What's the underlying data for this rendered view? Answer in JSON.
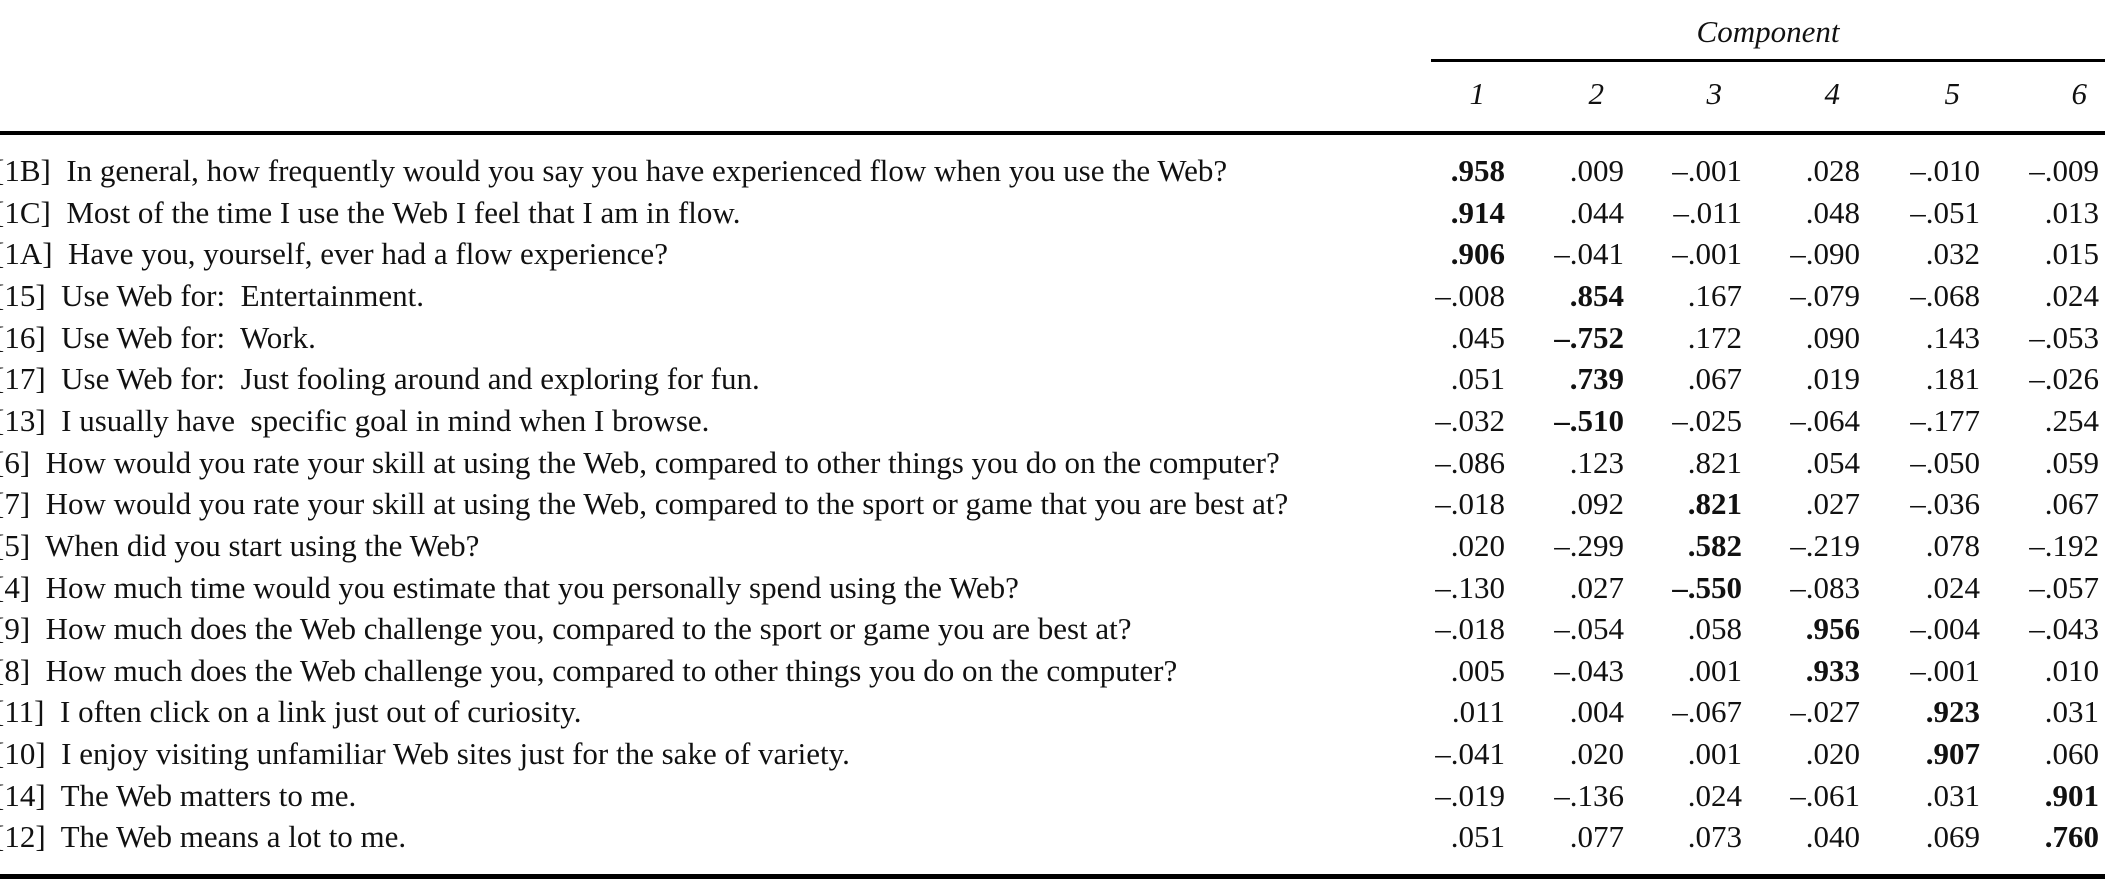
{
  "table": {
    "component_title": "Component",
    "columns": [
      "1",
      "2",
      "3",
      "4",
      "5",
      "6"
    ],
    "rows": [
      {
        "label": "[1B]  In general, how frequently would you say you have experienced flow when you use the Web?",
        "values": [
          ".958",
          ".009",
          "–.001",
          ".028",
          "–.010",
          "–.009"
        ],
        "bold": 0
      },
      {
        "label": "[1C]  Most of the time I use the Web I feel that I am in flow.",
        "values": [
          ".914",
          ".044",
          "–.011",
          ".048",
          "–.051",
          ".013"
        ],
        "bold": 0
      },
      {
        "label": "[1A]  Have you, yourself, ever had a flow experience?",
        "values": [
          ".906",
          "–.041",
          "–.001",
          "–.090",
          ".032",
          ".015"
        ],
        "bold": 0
      },
      {
        "label": "[15]  Use Web for:  Entertainment.",
        "values": [
          "–.008",
          ".854",
          ".167",
          "–.079",
          "–.068",
          ".024"
        ],
        "bold": 1
      },
      {
        "label": "[16]  Use Web for:  Work.",
        "values": [
          ".045",
          "–.752",
          ".172",
          ".090",
          ".143",
          "–.053"
        ],
        "bold": 1
      },
      {
        "label": "[17]  Use Web for:  Just fooling around and exploring for fun.",
        "values": [
          ".051",
          ".739",
          ".067",
          ".019",
          ".181",
          "–.026"
        ],
        "bold": 1
      },
      {
        "label": "[13]  I usually have  specific goal in mind when I browse.",
        "values": [
          "–.032",
          "–.510",
          "–.025",
          "–.064",
          "–.177",
          ".254"
        ],
        "bold": 1
      },
      {
        "label": "[6]  How would you rate your skill at using the Web, compared to other things you do on the computer?",
        "values": [
          "–.086",
          ".123",
          ".821",
          ".054",
          "–.050",
          ".059"
        ],
        "bold": -1
      },
      {
        "label": "[7]  How would you rate your skill at using the Web, compared to the sport or game that you are best at?",
        "values": [
          "–.018",
          ".092",
          ".821",
          ".027",
          "–.036",
          ".067"
        ],
        "bold": 2
      },
      {
        "label": "[5]  When did you start using the Web?",
        "values": [
          ".020",
          "–.299",
          ".582",
          "–.219",
          ".078",
          "–.192"
        ],
        "bold": 2
      },
      {
        "label": "[4]  How much time would you estimate that you personally spend using the Web?",
        "values": [
          "–.130",
          ".027",
          "–.550",
          "–.083",
          ".024",
          "–.057"
        ],
        "bold": 2
      },
      {
        "label": "[9]  How much does the Web challenge you, compared to the sport or game you are best at?",
        "values": [
          "–.018",
          "–.054",
          ".058",
          ".956",
          "–.004",
          "–.043"
        ],
        "bold": 3
      },
      {
        "label": "[8]  How much does the Web challenge you, compared to other things you do on the computer?",
        "values": [
          ".005",
          "–.043",
          ".001",
          ".933",
          "–.001",
          ".010"
        ],
        "bold": 3
      },
      {
        "label": "[11]  I often click on a link just out of curiosity.",
        "values": [
          ".011",
          ".004",
          "–.067",
          "–.027",
          ".923",
          ".031"
        ],
        "bold": 4
      },
      {
        "label": "[10]  I enjoy visiting unfamiliar Web sites just for the sake of variety.",
        "values": [
          "–.041",
          ".020",
          ".001",
          ".020",
          ".907",
          ".060"
        ],
        "bold": 4
      },
      {
        "label": "[14]  The Web matters to me.",
        "values": [
          "–.019",
          "–.136",
          ".024",
          "–.061",
          ".031",
          ".901"
        ],
        "bold": 5
      },
      {
        "label": "[12]  The Web means a lot to me.",
        "values": [
          ".051",
          ".077",
          ".073",
          ".040",
          ".069",
          ".760"
        ],
        "bold": 5
      }
    ]
  }
}
